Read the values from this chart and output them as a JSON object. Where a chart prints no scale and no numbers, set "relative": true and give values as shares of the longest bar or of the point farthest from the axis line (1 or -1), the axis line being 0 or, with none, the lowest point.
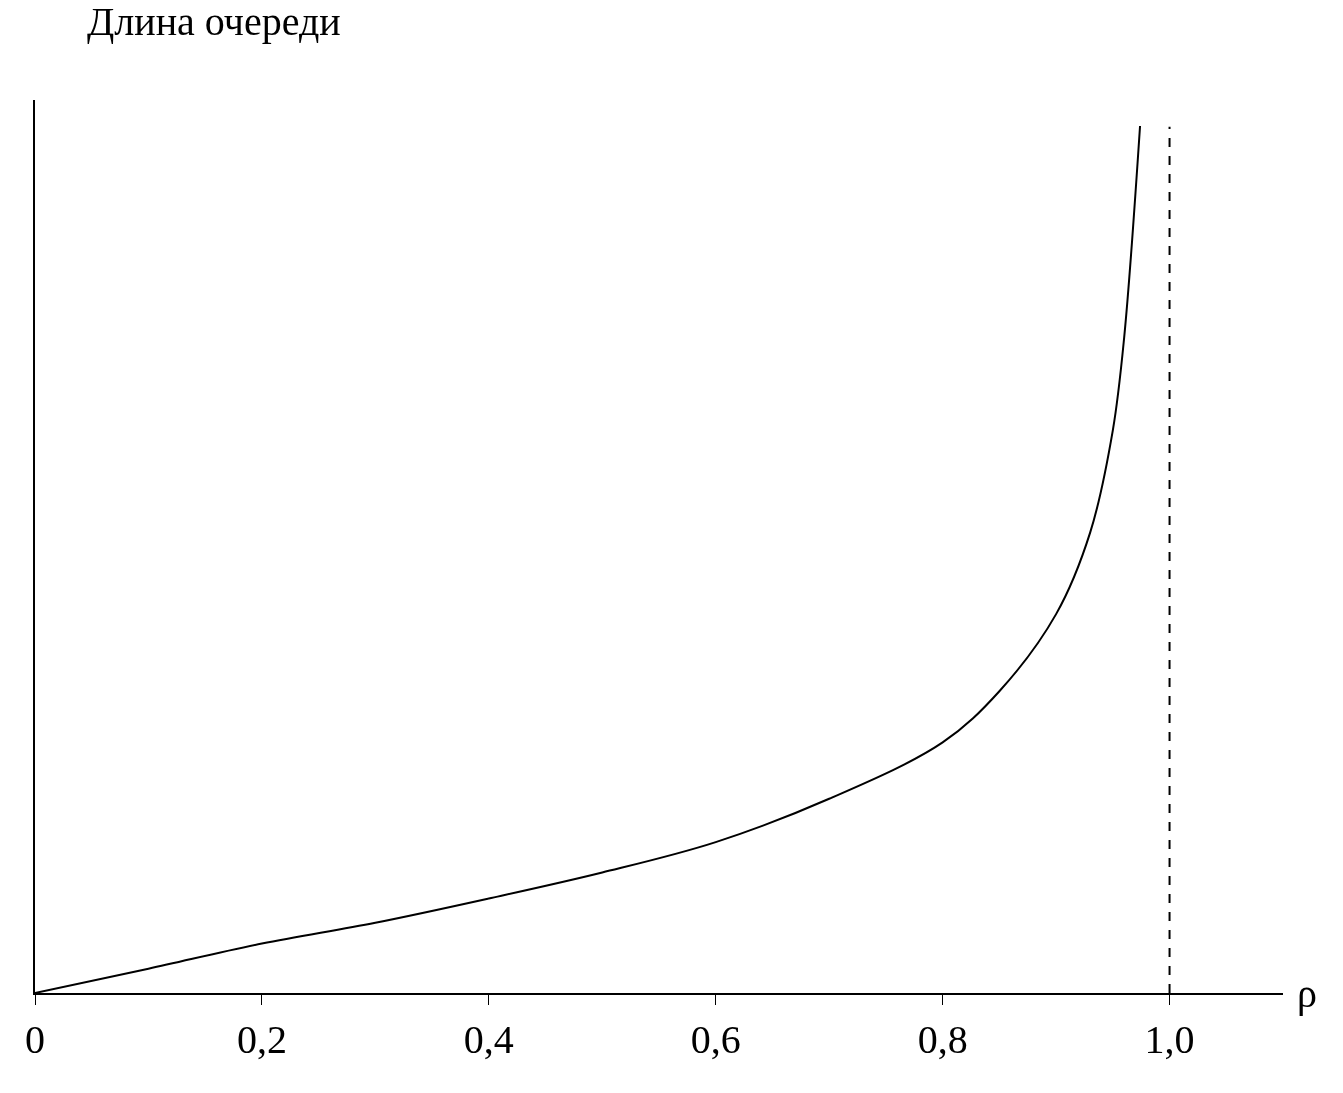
{
  "chart_data": {
    "type": "line",
    "xlabel": "ρ",
    "ylabel": "Длина очереди",
    "relative": true,
    "tick_labels": "x",
    "x": [
      0,
      0.1,
      0.2,
      0.3,
      0.4,
      0.5,
      0.6,
      0.7,
      0.8,
      0.85,
      0.9,
      0.93,
      0.95,
      0.96,
      0.974
    ],
    "series": [
      {
        "color": "#000000",
        "values": [
          0,
          0.028,
          0.057,
          0.081,
          0.109,
          0.139,
          0.174,
          0.224,
          0.289,
          0.348,
          0.437,
          0.531,
          0.649,
          0.756,
          1
        ]
      }
    ],
    "xlim": [
      0,
      1.1
    ],
    "xticks": [
      {
        "value": 0,
        "label": "0"
      },
      {
        "value": 0.2,
        "label": "0,2"
      },
      {
        "value": 0.4,
        "label": "0,4"
      },
      {
        "value": 0.6,
        "label": "0,6"
      },
      {
        "value": 0.8,
        "label": "0,8"
      },
      {
        "value": 1,
        "label": "1,0"
      }
    ],
    "ref_lines": [
      {
        "axis": "x",
        "value": 1,
        "line_style": "dashed",
        "color": "#000000"
      }
    ]
  }
}
